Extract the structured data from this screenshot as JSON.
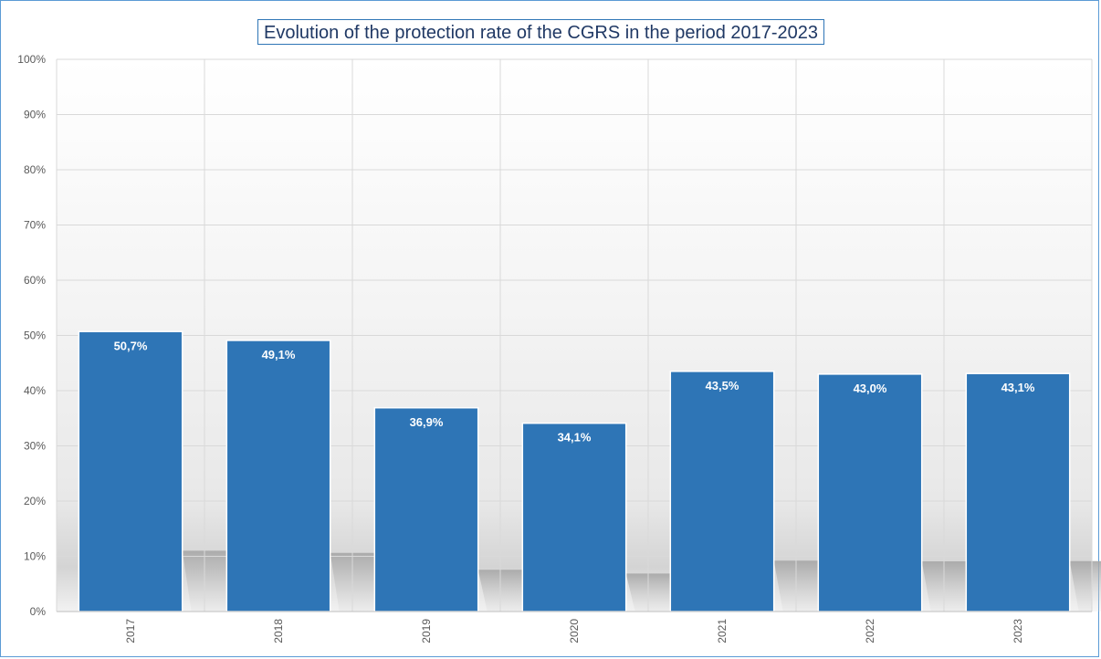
{
  "chart_data": {
    "type": "bar",
    "title": "Evolution of the protection rate of the CGRS in the period 2017-2023",
    "categories": [
      "2017",
      "2018",
      "2019",
      "2020",
      "2021",
      "2022",
      "2023"
    ],
    "values": [
      50.7,
      49.1,
      36.9,
      34.1,
      43.5,
      43.0,
      43.1
    ],
    "data_labels": [
      "50,7%",
      "49,1%",
      "36,9%",
      "34,1%",
      "43,5%",
      "43,0%",
      "43,1%"
    ],
    "ylim": [
      0,
      100
    ],
    "yticks": [
      "0%",
      "10%",
      "20%",
      "30%",
      "40%",
      "50%",
      "60%",
      "70%",
      "80%",
      "90%",
      "100%"
    ],
    "xlabel": "",
    "ylabel": "",
    "grid": true,
    "legend": "none",
    "colors": {
      "bar": "#2e75b6",
      "title_border": "#2e75b6",
      "frame_border": "#5b9bd5"
    }
  }
}
